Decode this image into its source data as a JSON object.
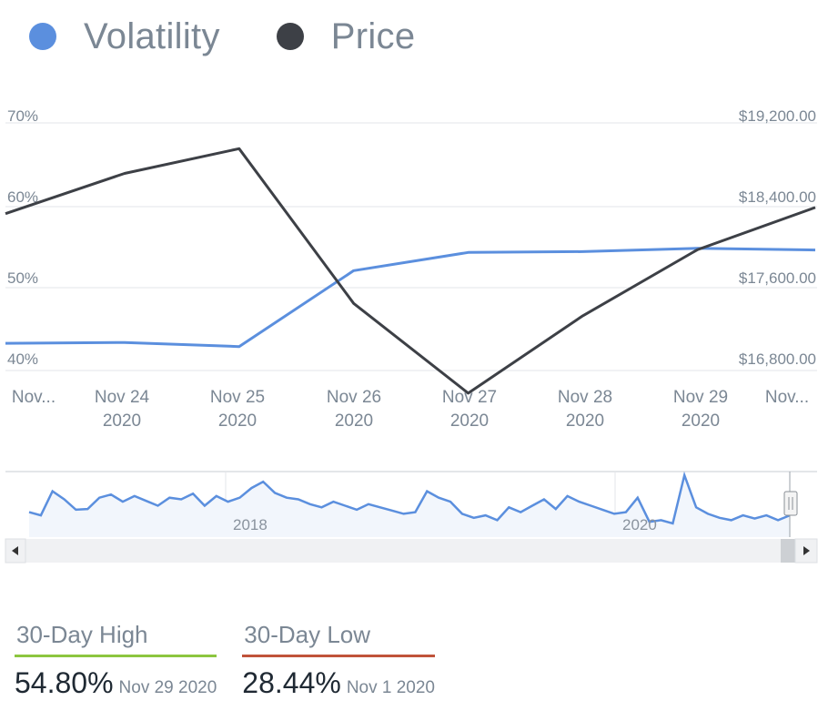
{
  "legend": [
    {
      "label": "Volatility",
      "color": "#5b8fde"
    },
    {
      "label": "Price",
      "color": "#3d4046"
    }
  ],
  "chart_data": {
    "type": "line",
    "categories": [
      "Nov...",
      "Nov 24 2020",
      "Nov 25 2020",
      "Nov 26 2020",
      "Nov 27 2020",
      "Nov 28 2020",
      "Nov 29 2020",
      "Nov..."
    ],
    "x_tick_labels": [
      {
        "line1": "Nov...",
        "line2": ""
      },
      {
        "line1": "Nov 24",
        "line2": "2020"
      },
      {
        "line1": "Nov 25",
        "line2": "2020"
      },
      {
        "line1": "Nov 26",
        "line2": "2020"
      },
      {
        "line1": "Nov 27",
        "line2": "2020"
      },
      {
        "line1": "Nov 28",
        "line2": "2020"
      },
      {
        "line1": "Nov 29",
        "line2": "2020"
      },
      {
        "line1": "Nov...",
        "line2": ""
      }
    ],
    "x_points": [
      0,
      1,
      2,
      3,
      4,
      5,
      6,
      7
    ],
    "x_range": [
      -0.04,
      7.03
    ],
    "series": [
      {
        "name": "Volatility",
        "axis": "left",
        "color": "#5b8fde",
        "x": [
          -0.04,
          1,
          2,
          3,
          4,
          5,
          6,
          7.03
        ],
        "values": [
          43.3,
          43.4,
          42.9,
          52.1,
          54.3,
          54.4,
          54.8,
          54.6
        ]
      },
      {
        "name": "Price",
        "axis": "right",
        "color": "#3d4046",
        "x": [
          -0.04,
          1,
          2,
          3,
          4,
          5,
          6,
          7.03
        ],
        "values": [
          18320,
          18710,
          18950,
          17450,
          16580,
          17330,
          17970,
          18380
        ]
      }
    ],
    "y_left": {
      "ticks": [
        "70%",
        "60%",
        "50%",
        "40%"
      ],
      "range": [
        40,
        70
      ]
    },
    "y_right": {
      "ticks": [
        "$19,200.00",
        "$18,400.00",
        "$17,600.00",
        "$16,800.00"
      ],
      "range": [
        16800,
        19200
      ]
    },
    "grid": true,
    "legend_position": "top-left"
  },
  "navigator": {
    "year_labels": [
      "2018",
      "2020"
    ],
    "series": [
      22,
      18,
      48,
      38,
      25,
      26,
      40,
      44,
      35,
      42,
      36,
      30,
      40,
      38,
      45,
      30,
      42,
      35,
      40,
      52,
      60,
      46,
      40,
      38,
      32,
      28,
      35,
      30,
      25,
      32,
      28,
      24,
      20,
      22,
      48,
      40,
      35,
      20,
      15,
      18,
      12,
      28,
      22,
      30,
      38,
      26,
      42,
      35,
      30,
      25,
      20,
      22,
      40,
      10,
      12,
      8,
      68,
      28,
      20,
      15,
      12,
      18,
      14,
      18,
      12,
      18
    ]
  },
  "stats": [
    {
      "label": "30-Day High",
      "value": "54.80%",
      "date": "Nov 29 2020",
      "color": "#8cc63f"
    },
    {
      "label": "30-Day Low",
      "value": "28.44%",
      "date": "Nov 1 2020",
      "color": "#c0533a"
    }
  ]
}
